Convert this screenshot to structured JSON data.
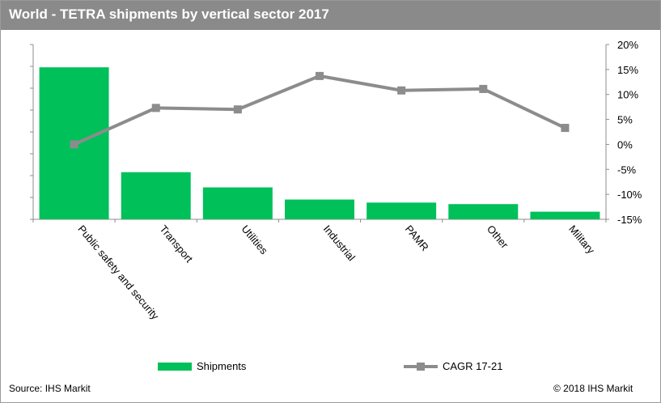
{
  "title": "World - TETRA shipments by vertical sector 2017",
  "source": "Source: IHS Markit",
  "copyright": "© 2018 IHS Markit",
  "colors": {
    "bar": "#00c05a",
    "line": "#8c8c8c",
    "title_bg": "#8a8a8a"
  },
  "chart_data": {
    "type": "bar",
    "categories": [
      "Public safety and security",
      "Transport",
      "Utilities",
      "Industrial",
      "PAMR",
      "Other",
      "Military"
    ],
    "series": [
      {
        "name": "Shipments",
        "type": "bar",
        "axis": "left",
        "values": [
          100,
          31,
          21,
          13,
          11,
          10,
          5
        ]
      },
      {
        "name": "CAGR 17-21",
        "type": "line",
        "axis": "right",
        "values": [
          0.0,
          7.3,
          7.0,
          13.7,
          10.8,
          11.1,
          3.3
        ]
      }
    ],
    "y_left": {
      "range": [
        0,
        115
      ],
      "tick_labels_shown": false
    },
    "y_right": {
      "range": [
        -15,
        20
      ],
      "ticks": [
        20,
        15,
        10,
        5,
        0,
        -5,
        -10,
        -15
      ],
      "tick_labels": [
        "20%",
        "15%",
        "10%",
        "5%",
        "0%",
        "-5%",
        "-10%",
        "-15%"
      ]
    },
    "legend": {
      "placement": "bottom"
    },
    "grid": false
  }
}
